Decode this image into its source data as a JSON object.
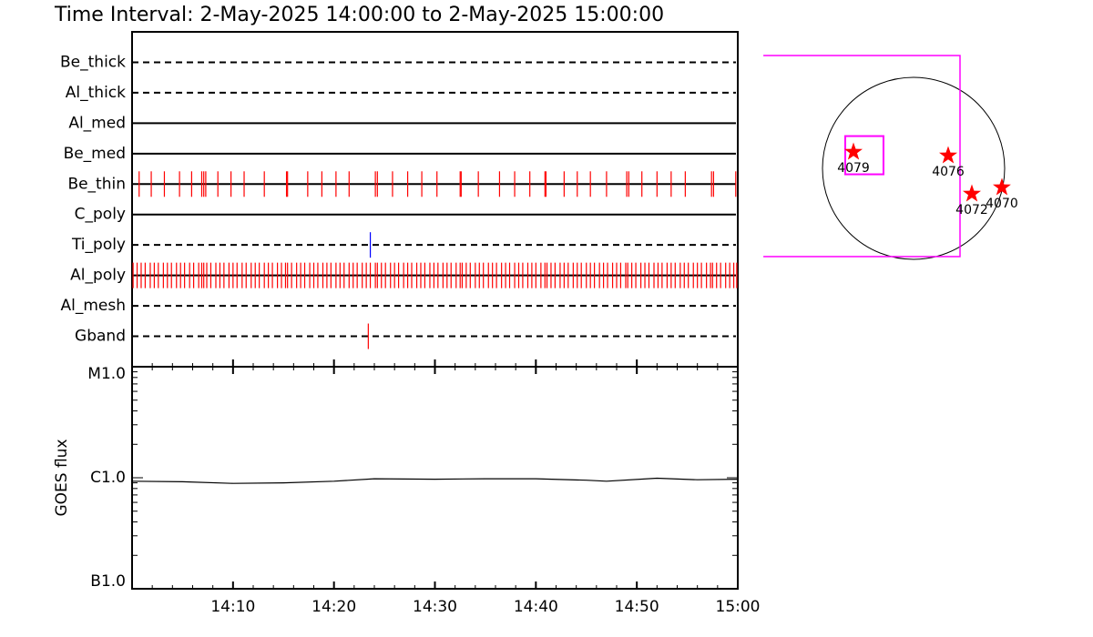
{
  "title": "Time Interval:  2-May-2025 14:00:00 to  2-May-2025 15:00:00",
  "chart_data": [
    {
      "type": "timeline",
      "xlim": [
        0,
        60
      ],
      "rows": [
        {
          "name": "Be_thick",
          "style": "dashed",
          "color": "#ff0000",
          "events": []
        },
        {
          "name": "Al_thick",
          "style": "dashed",
          "color": "#ff0000",
          "events": []
        },
        {
          "name": "Al_med",
          "style": "solid",
          "color": "#ff0000",
          "events": []
        },
        {
          "name": "Be_med",
          "style": "solid",
          "color": "#ff0000",
          "events": []
        },
        {
          "name": "Be_thin",
          "style": "solid",
          "color": "#ff0000",
          "events": [
            0.7,
            1.9,
            3.2,
            4.7,
            5.9,
            6.9,
            7.1,
            7.3,
            8.5,
            9.8,
            11.1,
            13.1,
            15.3,
            15.4,
            17.4,
            18.8,
            20.2,
            21.5,
            24.1,
            24.3,
            25.8,
            27.3,
            28.7,
            30.2,
            32.5,
            32.6,
            34.3,
            36.4,
            37.9,
            39.4,
            40.9,
            41.0,
            42.8,
            44.1,
            45.4,
            47.0,
            49.0,
            49.2,
            50.5,
            52.0,
            53.4,
            54.8,
            57.4,
            57.6,
            59.8
          ]
        },
        {
          "name": "C_poly",
          "style": "solid",
          "color": "#ff0000",
          "events": []
        },
        {
          "name": "Ti_poly",
          "style": "dashed",
          "color": "#0000ff",
          "events": [
            23.6
          ]
        },
        {
          "name": "Al_poly",
          "style": "solid",
          "color": "#ff0000",
          "events": [
            0.1,
            0.5,
            0.9,
            1.3,
            1.8,
            2.2,
            2.6,
            3.1,
            3.5,
            3.9,
            4.4,
            4.8,
            5.2,
            5.7,
            6.1,
            6.6,
            6.9,
            7.1,
            7.4,
            7.8,
            8.3,
            8.7,
            9.1,
            9.6,
            10.0,
            10.4,
            10.9,
            11.3,
            11.8,
            12.2,
            12.6,
            13.1,
            13.5,
            13.9,
            14.4,
            14.8,
            15.2,
            15.4,
            15.8,
            16.3,
            16.7,
            17.1,
            17.6,
            18.0,
            18.4,
            18.9,
            19.3,
            19.7,
            20.2,
            20.6,
            21.0,
            21.5,
            21.9,
            22.3,
            22.8,
            23.2,
            23.6,
            24.1,
            24.3,
            24.7,
            25.1,
            25.6,
            26.0,
            26.4,
            26.9,
            27.3,
            27.7,
            28.2,
            28.6,
            29.0,
            29.5,
            29.9,
            30.3,
            30.8,
            31.2,
            31.6,
            32.1,
            32.5,
            32.7,
            33.1,
            33.5,
            34.0,
            34.4,
            34.8,
            35.3,
            35.7,
            36.1,
            36.6,
            37.0,
            37.4,
            37.9,
            38.3,
            38.7,
            39.2,
            39.6,
            40.0,
            40.5,
            40.9,
            41.1,
            41.5,
            41.9,
            42.4,
            42.8,
            43.2,
            43.7,
            44.1,
            44.5,
            45.0,
            45.4,
            45.8,
            46.3,
            46.7,
            47.1,
            47.6,
            48.0,
            48.4,
            48.9,
            49.1,
            49.5,
            49.9,
            50.4,
            50.8,
            51.2,
            51.7,
            52.1,
            52.5,
            53.0,
            53.4,
            53.8,
            54.3,
            54.7,
            55.1,
            55.6,
            56.0,
            56.4,
            56.9,
            57.3,
            57.5,
            57.9,
            58.3,
            58.8,
            59.2,
            59.6,
            59.9
          ]
        },
        {
          "name": "Al_mesh",
          "style": "dashed",
          "color": "#ff0000",
          "events": []
        },
        {
          "name": "Gband",
          "style": "dashed",
          "color": "#ff0000",
          "events": [
            23.4
          ]
        }
      ]
    },
    {
      "type": "line",
      "y_label": "GOES flux",
      "log_scale": true,
      "xlim": [
        0,
        60
      ],
      "xticks": [
        {
          "value": 10,
          "label": "14:10"
        },
        {
          "value": 20,
          "label": "14:20"
        },
        {
          "value": 30,
          "label": "14:30"
        },
        {
          "value": 40,
          "label": "14:40"
        },
        {
          "value": 50,
          "label": "14:50"
        },
        {
          "value": 60,
          "label": "15:00"
        }
      ],
      "xminorticks": [
        2,
        4,
        6,
        8,
        12,
        14,
        16,
        18,
        22,
        24,
        26,
        28,
        32,
        34,
        36,
        38,
        42,
        44,
        46,
        48,
        52,
        54,
        56,
        58
      ],
      "ylim": [
        1e-07,
        1e-05
      ],
      "yticks": [
        {
          "value": 1e-07,
          "label": "B1.0"
        },
        {
          "value": 1e-06,
          "label": "C1.0"
        },
        {
          "value": 1e-05,
          "label": "M1.0"
        }
      ],
      "yminorticks": [
        2e-07,
        3e-07,
        4e-07,
        5e-07,
        6e-07,
        7e-07,
        8e-07,
        9e-07,
        2e-06,
        3e-06,
        4e-06,
        5e-06,
        6e-06,
        7e-06,
        8e-06,
        9e-06
      ],
      "series": [
        {
          "color": "#000000",
          "x": [
            0,
            5,
            10,
            15,
            20,
            24,
            30,
            35,
            40,
            45,
            47,
            52,
            56,
            60
          ],
          "values": [
            9.3e-07,
            9.2e-07,
            8.9e-07,
            9e-07,
            9.3e-07,
            9.8e-07,
            9.7e-07,
            9.8e-07,
            9.8e-07,
            9.5e-07,
            9.3e-07,
            9.9e-07,
            9.6e-07,
            9.7e-07
          ]
        }
      ]
    },
    {
      "type": "map",
      "xlim": [
        -1575,
        1600
      ],
      "ylim": [
        -1700,
        1700
      ],
      "disk_radius": 955,
      "fov": {
        "x": -568,
        "y": 129,
        "size": 2110,
        "color": "#ff00ff"
      },
      "box": {
        "x": -516,
        "y": 138,
        "size": 401,
        "color": "#ff00ff"
      },
      "regions": [
        {
          "label": "4079",
          "x": -630,
          "y": 172,
          "color": "#ff0000"
        },
        {
          "label": "4076",
          "x": 363,
          "y": 134,
          "color": "#ff0000"
        },
        {
          "label": "4072",
          "x": 611,
          "y": -267,
          "color": "#ff0000"
        },
        {
          "label": "4070",
          "x": 926,
          "y": -201,
          "color": "#ff0000"
        }
      ]
    }
  ]
}
